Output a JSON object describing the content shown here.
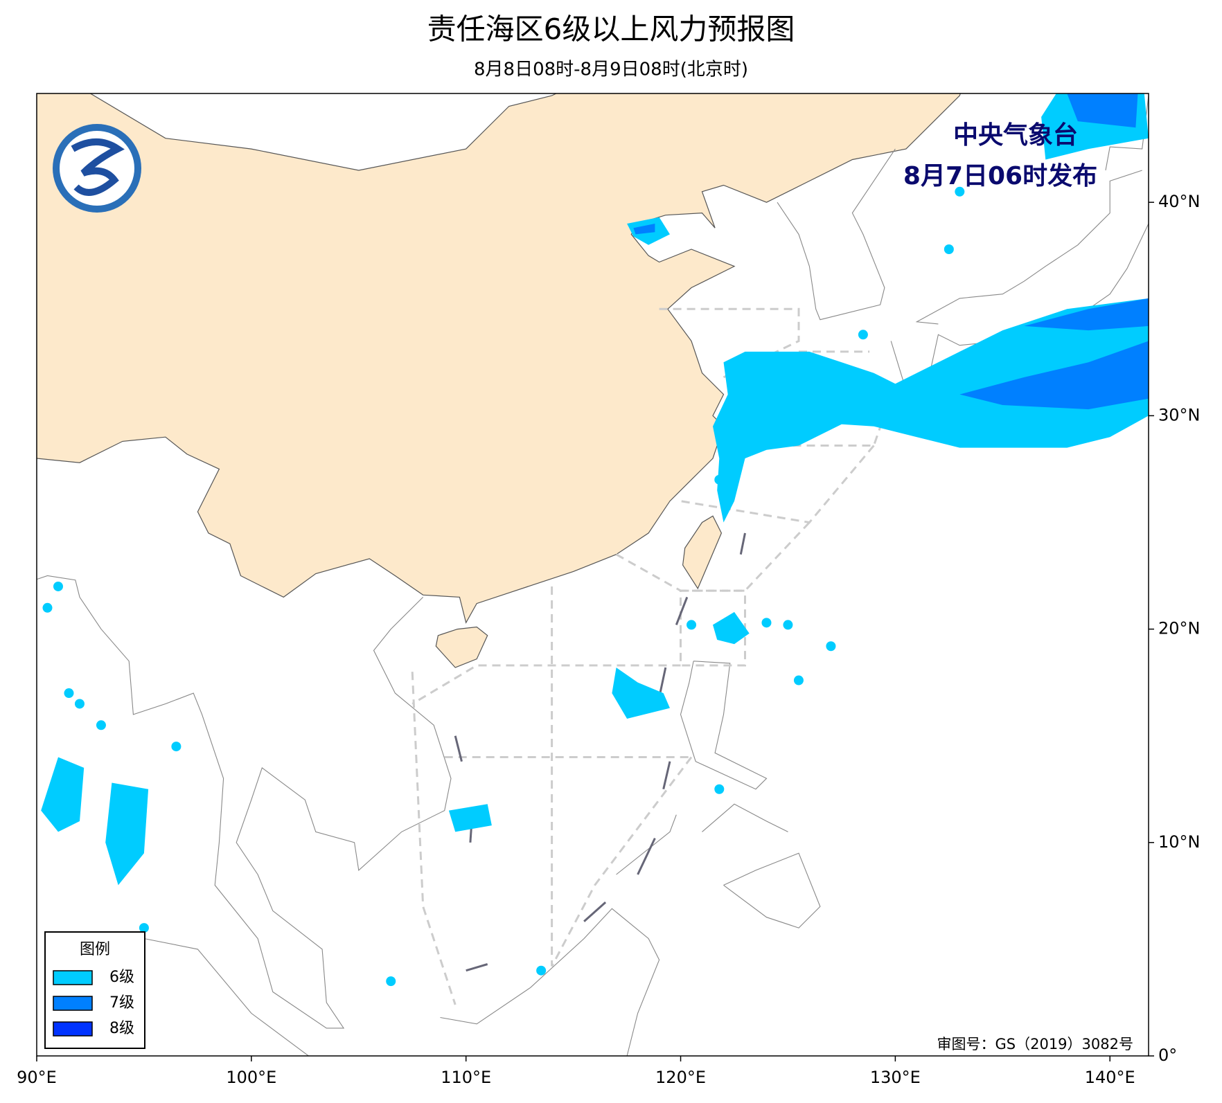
{
  "header": {
    "title": "责任海区6级以上风力预报图",
    "subtitle": "8月8日08时-8月9日08时(北京时)"
  },
  "issuer": {
    "agency": "中央气象台",
    "issued": "8月7日06时发布"
  },
  "map": {
    "xlim": [
      90,
      141.8
    ],
    "ylim": [
      0,
      45.1
    ],
    "xticks": [
      {
        "value": 90,
        "label": "90°E"
      },
      {
        "value": 100,
        "label": "100°E"
      },
      {
        "value": 110,
        "label": "110°E"
      },
      {
        "value": 120,
        "label": "120°E"
      },
      {
        "value": 130,
        "label": "130°E"
      },
      {
        "value": 140,
        "label": "140°E"
      }
    ],
    "yticks": [
      {
        "value": 0,
        "label": "0°"
      },
      {
        "value": 10,
        "label": "10°N"
      },
      {
        "value": 20,
        "label": "20°N"
      },
      {
        "value": 30,
        "label": "30°N"
      },
      {
        "value": 40,
        "label": "40°N"
      }
    ]
  },
  "legend": {
    "title": "图例",
    "items": [
      {
        "label": "6级",
        "color": "#00ccff"
      },
      {
        "label": "7级",
        "color": "#0080ff"
      },
      {
        "label": "8级",
        "color": "#0033ff"
      }
    ]
  },
  "footer": {
    "approval": "审图号：GS（2019）3082号"
  }
}
